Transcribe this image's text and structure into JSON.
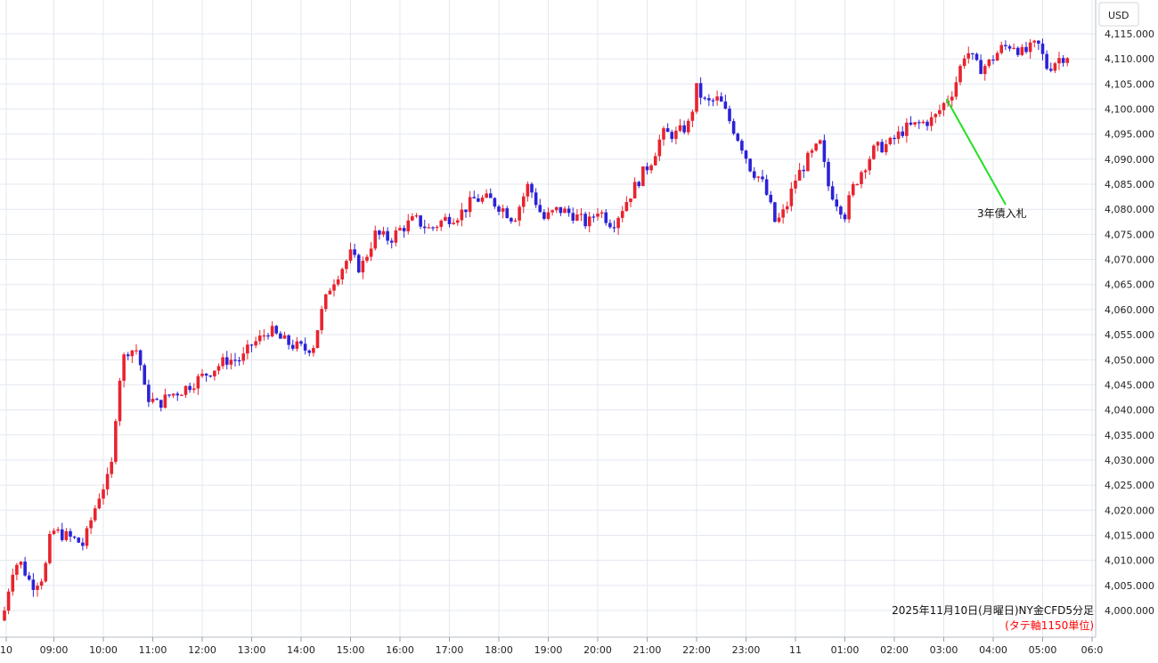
{
  "chart_data": {
    "type": "candlestick",
    "title": "2025年11月10日(月曜日)NY金CFD5分足",
    "subtitle": "(タテ軸1150単位)",
    "currency": "USD",
    "x_ticks": [
      "10",
      "09:00",
      "10:00",
      "11:00",
      "12:00",
      "13:00",
      "14:00",
      "15:00",
      "16:00",
      "17:00",
      "18:00",
      "19:00",
      "20:00",
      "21:00",
      "22:00",
      "23:00",
      "11",
      "01:00",
      "02:00",
      "03:00",
      "04:00",
      "05:00",
      "06:0"
    ],
    "y_ticks": [
      "4,115.000",
      "4,110.000",
      "4,105.000",
      "4,100.000",
      "4,095.000",
      "4,090.000",
      "4,085.000",
      "4,080.000",
      "4,075.000",
      "4,070.000",
      "4,065.000",
      "4,060.000",
      "4,055.000",
      "4,050.000",
      "4,045.000",
      "4,040.000",
      "4,035.000",
      "4,030.000",
      "4,025.000",
      "4,020.000",
      "4,015.000",
      "4,010.000",
      "4,005.000",
      "4,000.000"
    ],
    "ylim": [
      3997,
      4119
    ],
    "grid": true,
    "colors": {
      "up": "#e8232e",
      "down": "#2b22d6",
      "annotation_line": "#22e020",
      "grid": "#e3e8f0"
    },
    "annotation": {
      "text": "3年債入札",
      "x_hour": 3.0,
      "y": 4102
    },
    "x_start": "08:00",
    "x_step_minutes": 5,
    "close_path": [
      [
        8.0,
        4000
      ],
      [
        8.15,
        4008
      ],
      [
        8.3,
        4010
      ],
      [
        8.55,
        4005
      ],
      [
        8.8,
        4007
      ],
      [
        8.95,
        4016
      ],
      [
        9.2,
        4015
      ],
      [
        9.45,
        4014
      ],
      [
        9.6,
        4013
      ],
      [
        9.75,
        4018
      ],
      [
        9.95,
        4024
      ],
      [
        10.15,
        4027
      ],
      [
        10.3,
        4045
      ],
      [
        10.45,
        4052
      ],
      [
        10.7,
        4052
      ],
      [
        10.85,
        4043
      ],
      [
        11.1,
        4041
      ],
      [
        11.35,
        4043
      ],
      [
        11.6,
        4044
      ],
      [
        11.9,
        4046
      ],
      [
        12.2,
        4048
      ],
      [
        12.5,
        4050
      ],
      [
        12.8,
        4050
      ],
      [
        13.0,
        4053
      ],
      [
        13.15,
        4054
      ],
      [
        13.35,
        4056
      ],
      [
        13.6,
        4054
      ],
      [
        13.8,
        4053
      ],
      [
        14.1,
        4052
      ],
      [
        14.25,
        4053
      ],
      [
        14.4,
        4059
      ],
      [
        14.6,
        4065
      ],
      [
        14.8,
        4068
      ],
      [
        15.0,
        4071
      ],
      [
        15.2,
        4068
      ],
      [
        15.5,
        4075
      ],
      [
        15.8,
        4074
      ],
      [
        16.0,
        4076
      ],
      [
        16.3,
        4078
      ],
      [
        16.6,
        4076
      ],
      [
        16.9,
        4078
      ],
      [
        17.2,
        4079
      ],
      [
        17.5,
        4082
      ],
      [
        17.8,
        4082
      ],
      [
        18.1,
        4080
      ],
      [
        18.3,
        4078
      ],
      [
        18.6,
        4085
      ],
      [
        18.9,
        4078
      ],
      [
        19.2,
        4080
      ],
      [
        19.5,
        4079
      ],
      [
        19.8,
        4077
      ],
      [
        20.0,
        4080
      ],
      [
        20.3,
        4077
      ],
      [
        20.6,
        4082
      ],
      [
        20.9,
        4087
      ],
      [
        21.1,
        4090
      ],
      [
        21.3,
        4095
      ],
      [
        21.6,
        4095
      ],
      [
        21.85,
        4097
      ],
      [
        22.0,
        4104
      ],
      [
        22.2,
        4101
      ],
      [
        22.45,
        4102
      ],
      [
        22.7,
        4097
      ],
      [
        22.9,
        4093
      ],
      [
        23.1,
        4088
      ],
      [
        23.3,
        4086
      ],
      [
        23.45,
        4082
      ],
      [
        23.6,
        4077
      ],
      [
        23.8,
        4080
      ],
      [
        24.0,
        4086
      ],
      [
        24.25,
        4090
      ],
      [
        24.5,
        4093
      ],
      [
        24.65,
        4085
      ],
      [
        24.8,
        4082
      ],
      [
        25.0,
        4079
      ],
      [
        25.15,
        4084
      ],
      [
        25.35,
        4088
      ],
      [
        25.6,
        4092
      ],
      [
        25.9,
        4093
      ],
      [
        26.2,
        4096
      ],
      [
        26.5,
        4097
      ],
      [
        26.8,
        4098
      ],
      [
        27.0,
        4101
      ],
      [
        27.2,
        4104
      ],
      [
        27.45,
        4112
      ],
      [
        27.7,
        4108
      ],
      [
        27.9,
        4109
      ],
      [
        28.15,
        4112
      ],
      [
        28.4,
        4113
      ],
      [
        28.6,
        4111
      ],
      [
        28.9,
        4113
      ],
      [
        29.1,
        4108
      ],
      [
        29.3,
        4110
      ],
      [
        29.55,
        4111
      ]
    ]
  }
}
